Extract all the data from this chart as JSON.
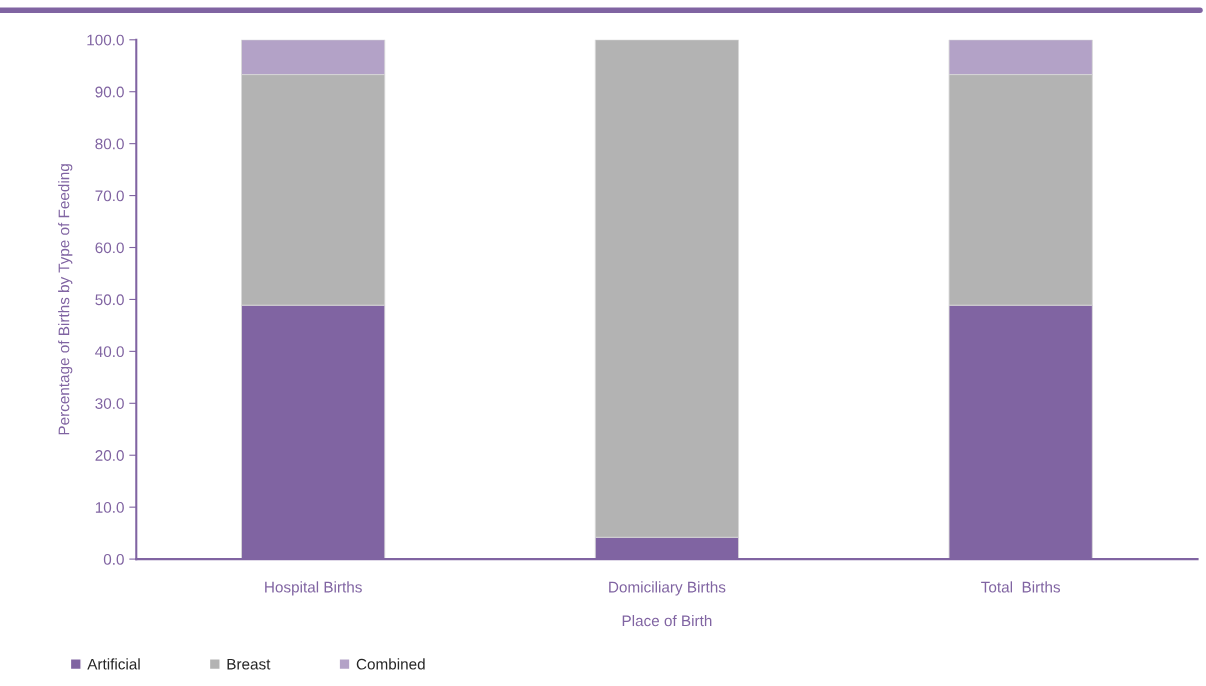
{
  "chart_data": {
    "type": "bar",
    "stacked": true,
    "xlabel": "Place of Birth",
    "ylabel": "Percentage of Births by Type of Feeding",
    "categories": [
      "Hospital Births",
      "Domiciliary Births",
      "Total  Births"
    ],
    "series": [
      {
        "name": "Artificial",
        "color": "#8064a2",
        "values": [
          48.9,
          4.2,
          48.9
        ]
      },
      {
        "name": "Breast",
        "color": "#b3b3b3",
        "values": [
          44.4,
          95.8,
          44.4
        ]
      },
      {
        "name": "Combined",
        "color": "#b3a2c7",
        "values": [
          6.7,
          0,
          6.7
        ]
      }
    ],
    "ylim": [
      0,
      100
    ],
    "yticks": [
      {
        "value": 0,
        "label": "0.0"
      },
      {
        "value": 10,
        "label": "10.0"
      },
      {
        "value": 20,
        "label": "20.0"
      },
      {
        "value": 30,
        "label": "30.0"
      },
      {
        "value": 40,
        "label": "40.0"
      },
      {
        "value": 50,
        "label": "50.0"
      },
      {
        "value": 60,
        "label": "60.0"
      },
      {
        "value": 70,
        "label": "70.0"
      },
      {
        "value": 80,
        "label": "80.0"
      },
      {
        "value": 90,
        "label": "90.0"
      },
      {
        "value": 100,
        "label": "100.0"
      }
    ],
    "grid": false,
    "legend": "bottom left"
  }
}
